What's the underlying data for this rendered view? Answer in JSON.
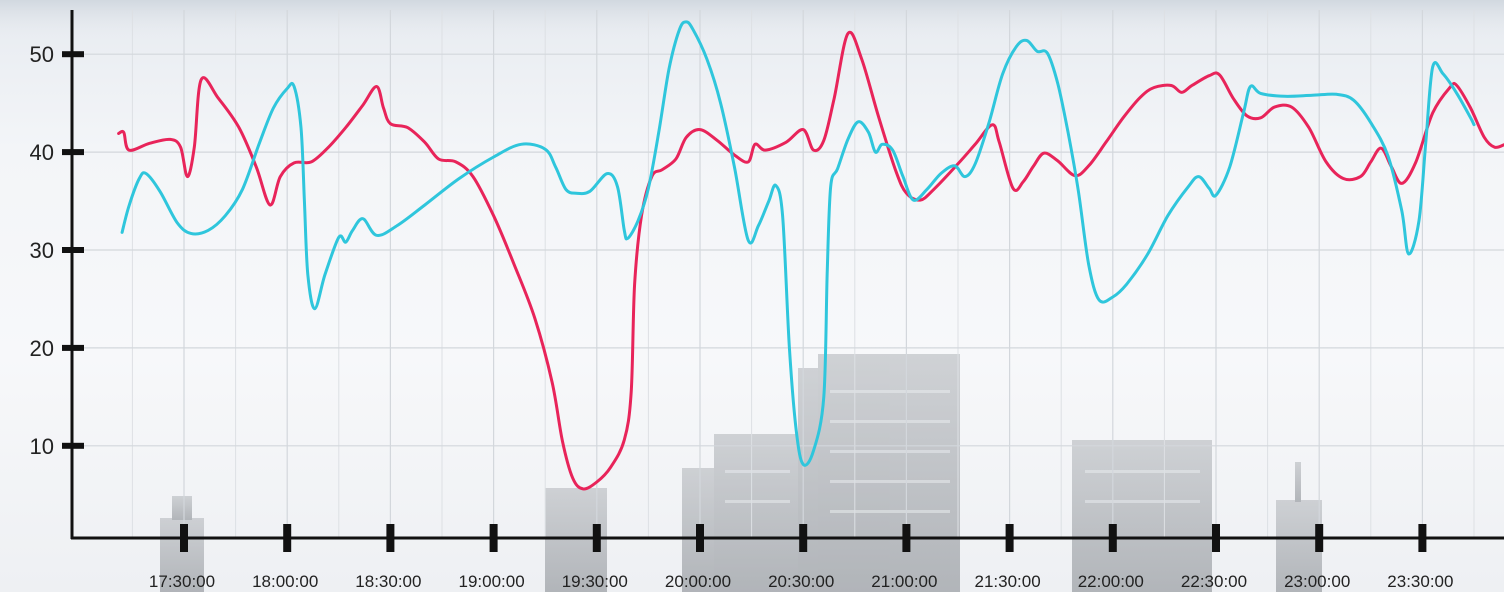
{
  "chart_data": {
    "type": "line",
    "title": "",
    "xlabel": "",
    "ylabel": "",
    "grid": true,
    "legend": "none",
    "ylim": [
      0,
      53
    ],
    "xlim": [
      "17:11:00",
      "23:56:00"
    ],
    "x_ticks": [
      "17:30:00",
      "18:00:00",
      "18:30:00",
      "19:00:00",
      "19:30:00",
      "20:00:00",
      "20:30:00",
      "21:00:00",
      "21:30:00",
      "22:00:00",
      "22:30:00",
      "23:00:00",
      "23:30:00"
    ],
    "y_ticks": [
      10,
      20,
      30,
      40,
      50
    ],
    "series": [
      {
        "color": "#e8245a",
        "points": [
          [
            "17:11:00",
            41.9
          ],
          [
            "17:12:30",
            42.0
          ],
          [
            "17:14:00",
            40.2
          ],
          [
            "17:20:00",
            40.9
          ],
          [
            "17:26:00",
            41.3
          ],
          [
            "17:29:00",
            40.5
          ],
          [
            "17:31:00",
            37.5
          ],
          [
            "17:33:00",
            40.5
          ],
          [
            "17:35:00",
            47.4
          ],
          [
            "17:40:00",
            45.5
          ],
          [
            "17:46:00",
            42.5
          ],
          [
            "17:51:00",
            38.5
          ],
          [
            "17:55:00",
            34.6
          ],
          [
            "17:58:00",
            37.5
          ],
          [
            "18:02:00",
            38.9
          ],
          [
            "18:07:00",
            39.0
          ],
          [
            "18:12:00",
            40.5
          ],
          [
            "18:17:00",
            42.5
          ],
          [
            "18:22:00",
            44.8
          ],
          [
            "18:26:00",
            46.7
          ],
          [
            "18:28:00",
            44.5
          ],
          [
            "18:30:00",
            42.9
          ],
          [
            "18:35:00",
            42.5
          ],
          [
            "18:40:00",
            41.0
          ],
          [
            "18:44:00",
            39.3
          ],
          [
            "18:49:00",
            39.0
          ],
          [
            "18:54:00",
            37.5
          ],
          [
            "19:00:00",
            33.5
          ],
          [
            "19:06:00",
            28.5
          ],
          [
            "19:12:00",
            23.0
          ],
          [
            "19:17:00",
            16.5
          ],
          [
            "19:20:00",
            10.5
          ],
          [
            "19:23:00",
            6.7
          ],
          [
            "19:26:00",
            5.6
          ],
          [
            "19:30:00",
            6.3
          ],
          [
            "19:34:00",
            7.8
          ],
          [
            "19:38:00",
            10.6
          ],
          [
            "19:40:00",
            15.5
          ],
          [
            "19:41:00",
            26.5
          ],
          [
            "19:43:00",
            33.5
          ],
          [
            "19:46:00",
            37.5
          ],
          [
            "19:49:00",
            38.2
          ],
          [
            "19:53:00",
            39.3
          ],
          [
            "19:56:00",
            41.5
          ],
          [
            "20:00:00",
            42.3
          ],
          [
            "20:05:00",
            41.2
          ],
          [
            "20:10:00",
            39.7
          ],
          [
            "20:14:00",
            39.0
          ],
          [
            "20:16:00",
            40.8
          ],
          [
            "20:19:00",
            40.2
          ],
          [
            "20:25:00",
            41.0
          ],
          [
            "20:30:00",
            42.3
          ],
          [
            "20:33:00",
            40.2
          ],
          [
            "20:36:00",
            41.2
          ],
          [
            "20:39:00",
            45.5
          ],
          [
            "20:43:00",
            52.1
          ],
          [
            "20:47:00",
            49.5
          ],
          [
            "20:52:00",
            43.5
          ],
          [
            "20:57:00",
            38.0
          ],
          [
            "21:00:00",
            35.8
          ],
          [
            "21:04:00",
            35.1
          ],
          [
            "21:08:00",
            36.2
          ],
          [
            "21:15:00",
            38.8
          ],
          [
            "21:20:00",
            40.8
          ],
          [
            "21:25:00",
            42.8
          ],
          [
            "21:27:00",
            41.0
          ],
          [
            "21:31:00",
            36.3
          ],
          [
            "21:34:00",
            37.0
          ],
          [
            "21:37:00",
            38.6
          ],
          [
            "21:40:00",
            39.9
          ],
          [
            "21:44:00",
            39.1
          ],
          [
            "21:49:00",
            37.6
          ],
          [
            "21:53:00",
            38.6
          ],
          [
            "21:58:00",
            41.0
          ],
          [
            "22:03:00",
            43.5
          ],
          [
            "22:08:00",
            45.6
          ],
          [
            "22:12:00",
            46.6
          ],
          [
            "22:17:00",
            46.8
          ],
          [
            "22:20:00",
            46.1
          ],
          [
            "22:23:00",
            46.8
          ],
          [
            "22:28:00",
            47.8
          ],
          [
            "22:31:00",
            47.9
          ],
          [
            "22:35:00",
            45.5
          ],
          [
            "22:39:00",
            43.7
          ],
          [
            "22:43:00",
            43.5
          ],
          [
            "22:47:00",
            44.6
          ],
          [
            "22:52:00",
            44.6
          ],
          [
            "22:57:00",
            42.5
          ],
          [
            "23:02:00",
            39.0
          ],
          [
            "23:07:00",
            37.3
          ],
          [
            "23:12:00",
            37.5
          ],
          [
            "23:15:00",
            39.0
          ],
          [
            "23:18:00",
            40.4
          ],
          [
            "23:21:00",
            38.5
          ],
          [
            "23:24:00",
            36.8
          ],
          [
            "23:28:00",
            38.9
          ],
          [
            "23:33:00",
            44.0
          ],
          [
            "23:38:00",
            46.6
          ],
          [
            "23:40:00",
            46.8
          ],
          [
            "23:44:00",
            44.5
          ],
          [
            "23:48:00",
            41.5
          ],
          [
            "23:51:00",
            40.5
          ],
          [
            "23:54:00",
            40.8
          ],
          [
            "23:55:00",
            41.0
          ]
        ]
      },
      {
        "color": "#2fc6dc",
        "points": [
          [
            "17:12:00",
            31.8
          ],
          [
            "17:14:00",
            34.5
          ],
          [
            "17:17:00",
            37.3
          ],
          [
            "17:19:00",
            37.8
          ],
          [
            "17:23:00",
            36.0
          ],
          [
            "17:28:00",
            32.8
          ],
          [
            "17:32:00",
            31.7
          ],
          [
            "17:37:00",
            32.0
          ],
          [
            "17:42:00",
            33.5
          ],
          [
            "17:47:00",
            36.2
          ],
          [
            "17:52:00",
            41.0
          ],
          [
            "17:56:00",
            44.5
          ],
          [
            "18:00:00",
            46.5
          ],
          [
            "18:02:00",
            46.7
          ],
          [
            "18:04:00",
            42.5
          ],
          [
            "18:05:00",
            35.0
          ],
          [
            "18:06:00",
            27.5
          ],
          [
            "18:08:00",
            24.0
          ],
          [
            "18:11:00",
            27.5
          ],
          [
            "18:15:00",
            31.3
          ],
          [
            "18:17:00",
            30.8
          ],
          [
            "18:19:00",
            32.0
          ],
          [
            "18:22:00",
            33.2
          ],
          [
            "18:26:00",
            31.5
          ],
          [
            "18:32:00",
            32.5
          ],
          [
            "18:40:00",
            34.6
          ],
          [
            "18:50:00",
            37.3
          ],
          [
            "19:00:00",
            39.5
          ],
          [
            "19:08:00",
            40.8
          ],
          [
            "19:15:00",
            40.3
          ],
          [
            "19:18:00",
            38.5
          ],
          [
            "19:21:00",
            36.2
          ],
          [
            "19:24:00",
            35.8
          ],
          [
            "19:28:00",
            36.0
          ],
          [
            "19:33:00",
            37.8
          ],
          [
            "19:36:00",
            36.5
          ],
          [
            "19:38:00",
            32.0
          ],
          [
            "19:39:00",
            31.2
          ],
          [
            "19:42:00",
            33.0
          ],
          [
            "19:45:00",
            36.3
          ],
          [
            "19:48:00",
            42.0
          ],
          [
            "19:51:00",
            48.5
          ],
          [
            "19:54:00",
            52.5
          ],
          [
            "19:56:00",
            53.3
          ],
          [
            "19:58:00",
            52.5
          ],
          [
            "20:02:00",
            49.5
          ],
          [
            "20:06:00",
            45.0
          ],
          [
            "20:10:00",
            38.5
          ],
          [
            "20:14:00",
            31.0
          ],
          [
            "20:17:00",
            32.5
          ],
          [
            "20:20:00",
            35.0
          ],
          [
            "20:22:00",
            36.6
          ],
          [
            "20:24:00",
            33.5
          ],
          [
            "20:26:00",
            20.0
          ],
          [
            "20:28:00",
            11.5
          ],
          [
            "20:30:00",
            8.1
          ],
          [
            "20:33:00",
            9.5
          ],
          [
            "20:36:00",
            15.0
          ],
          [
            "20:37:00",
            28.0
          ],
          [
            "20:38:00",
            36.5
          ],
          [
            "20:40:00",
            38.3
          ],
          [
            "20:43:00",
            41.3
          ],
          [
            "20:46:00",
            43.1
          ],
          [
            "20:49:00",
            42.0
          ],
          [
            "20:51:00",
            40.0
          ],
          [
            "20:53:00",
            40.8
          ],
          [
            "20:56:00",
            40.2
          ],
          [
            "20:59:00",
            37.5
          ],
          [
            "21:02:00",
            35.1
          ],
          [
            "21:06:00",
            36.2
          ],
          [
            "21:10:00",
            37.8
          ],
          [
            "21:14:00",
            38.6
          ],
          [
            "21:17:00",
            37.5
          ],
          [
            "21:20:00",
            38.8
          ],
          [
            "21:24:00",
            43.0
          ],
          [
            "21:28:00",
            48.0
          ],
          [
            "21:32:00",
            50.8
          ],
          [
            "21:35:00",
            51.4
          ],
          [
            "21:38:00",
            50.3
          ],
          [
            "21:41:00",
            50.1
          ],
          [
            "21:44:00",
            47.0
          ],
          [
            "21:47:00",
            42.0
          ],
          [
            "21:50:00",
            36.0
          ],
          [
            "21:53:00",
            28.5
          ],
          [
            "21:56:00",
            24.9
          ],
          [
            "22:00:00",
            25.2
          ],
          [
            "22:04:00",
            26.5
          ],
          [
            "22:10:00",
            29.5
          ],
          [
            "22:16:00",
            33.5
          ],
          [
            "22:22:00",
            36.5
          ],
          [
            "22:25:00",
            37.5
          ],
          [
            "22:28:00",
            36.3
          ],
          [
            "22:30:00",
            35.6
          ],
          [
            "22:34:00",
            38.5
          ],
          [
            "22:38:00",
            44.0
          ],
          [
            "22:40:00",
            46.7
          ],
          [
            "22:43:00",
            46.0
          ],
          [
            "22:50:00",
            45.7
          ],
          [
            "22:58:00",
            45.8
          ],
          [
            "23:05:00",
            45.9
          ],
          [
            "23:10:00",
            45.3
          ],
          [
            "23:15:00",
            43.0
          ],
          [
            "23:20:00",
            39.6
          ],
          [
            "23:24:00",
            34.0
          ],
          [
            "23:26:00",
            29.6
          ],
          [
            "23:29:00",
            33.0
          ],
          [
            "23:31:00",
            41.0
          ],
          [
            "23:33:00",
            48.7
          ],
          [
            "23:36:00",
            48.0
          ],
          [
            "23:40:00",
            46.0
          ],
          [
            "23:44:00",
            43.5
          ],
          [
            "23:45:00",
            42.8
          ]
        ]
      }
    ]
  }
}
